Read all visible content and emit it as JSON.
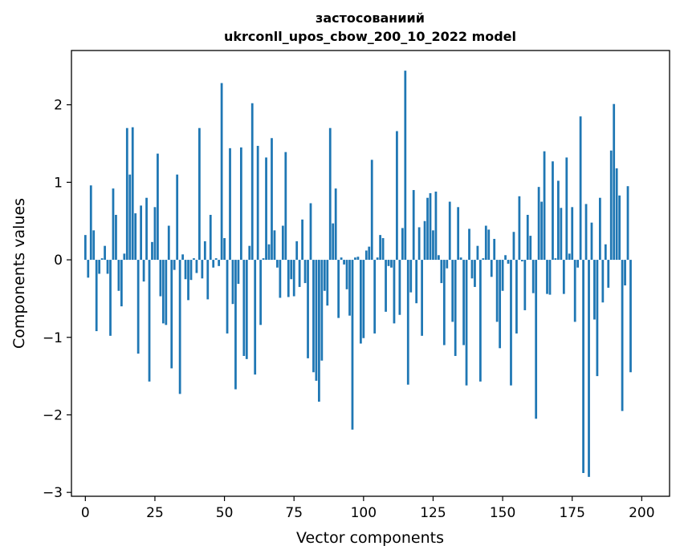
{
  "chart_data": {
    "type": "bar",
    "title": "застосованиий",
    "title_line1": "застосованиий",
    "title_line2": "ukrconll_upos_cbow_200_10_2022 model",
    "xlabel": "Vector components",
    "ylabel": "Components values",
    "xlim": [
      -5,
      210
    ],
    "ylim": [
      -3.05,
      2.7
    ],
    "xticks": [
      "0",
      "25",
      "50",
      "75",
      "100",
      "125",
      "150",
      "175",
      "200"
    ],
    "yticks": [
      "−3",
      "−2",
      "−1",
      "0",
      "1",
      "2"
    ],
    "bar_color": "#1f77b4",
    "grid": false,
    "values": [
      0.32,
      -0.23,
      0.96,
      0.38,
      -0.92,
      -0.18,
      0.02,
      0.18,
      -0.18,
      -0.98,
      0.92,
      0.58,
      -0.4,
      -0.6,
      0.08,
      1.7,
      1.1,
      1.71,
      0.6,
      -1.21,
      0.7,
      -0.28,
      0.8,
      -1.57,
      0.23,
      0.68,
      1.37,
      -0.47,
      -0.82,
      -0.84,
      0.44,
      -1.4,
      -0.13,
      1.1,
      -1.73,
      0.07,
      -0.25,
      -0.52,
      -0.26,
      0.02,
      -0.17,
      1.7,
      -0.24,
      0.24,
      -0.51,
      0.58,
      -0.1,
      0.02,
      -0.08,
      2.28,
      0.28,
      -0.95,
      1.44,
      -0.57,
      -1.67,
      -0.31,
      1.45,
      -1.24,
      -1.28,
      0.18,
      2.02,
      -1.48,
      1.47,
      -0.84,
      0.02,
      1.32,
      0.2,
      1.57,
      0.38,
      -0.1,
      -0.49,
      0.44,
      1.39,
      -0.48,
      -0.25,
      -0.47,
      0.24,
      -0.35,
      0.52,
      -0.3,
      -1.27,
      0.73,
      -1.45,
      -1.56,
      -1.83,
      -1.3,
      -0.4,
      -0.59,
      1.7,
      0.47,
      0.92,
      -0.75,
      0.03,
      -0.06,
      -0.38,
      -0.72,
      -2.19,
      0.03,
      0.04,
      -1.08,
      -1.01,
      0.12,
      0.17,
      1.29,
      -0.95,
      0.03,
      0.32,
      0.28,
      -0.67,
      -0.08,
      -0.1,
      -0.82,
      1.66,
      -0.71,
      0.41,
      2.44,
      -1.61,
      -0.42,
      0.9,
      -0.56,
      0.42,
      -0.98,
      0.5,
      0.8,
      0.86,
      0.38,
      0.88,
      0.06,
      -0.3,
      -1.1,
      -0.11,
      0.75,
      -0.8,
      -1.24,
      0.68,
      0.03,
      -1.1,
      -1.62,
      0.4,
      -0.24,
      -0.35,
      0.18,
      -1.57,
      0.02,
      0.44,
      0.39,
      -0.22,
      0.27,
      -0.8,
      -1.14,
      -0.4,
      0.06,
      -0.05,
      -1.62,
      0.36,
      -0.95,
      0.82,
      -0.02,
      -0.65,
      0.58,
      0.31,
      -0.43,
      -2.05,
      0.94,
      0.75,
      1.4,
      -0.44,
      -0.45,
      1.27,
      0.02,
      1.02,
      0.67,
      -0.44,
      1.32,
      0.08,
      0.68,
      -0.8,
      -0.1,
      1.85,
      -2.75,
      0.72,
      -2.8,
      0.48,
      -0.77,
      -1.5,
      0.8,
      -0.55,
      0.2,
      -0.36,
      1.41,
      2.01,
      1.18,
      0.83,
      -1.95,
      -0.33,
      0.95,
      -1.45
    ]
  }
}
